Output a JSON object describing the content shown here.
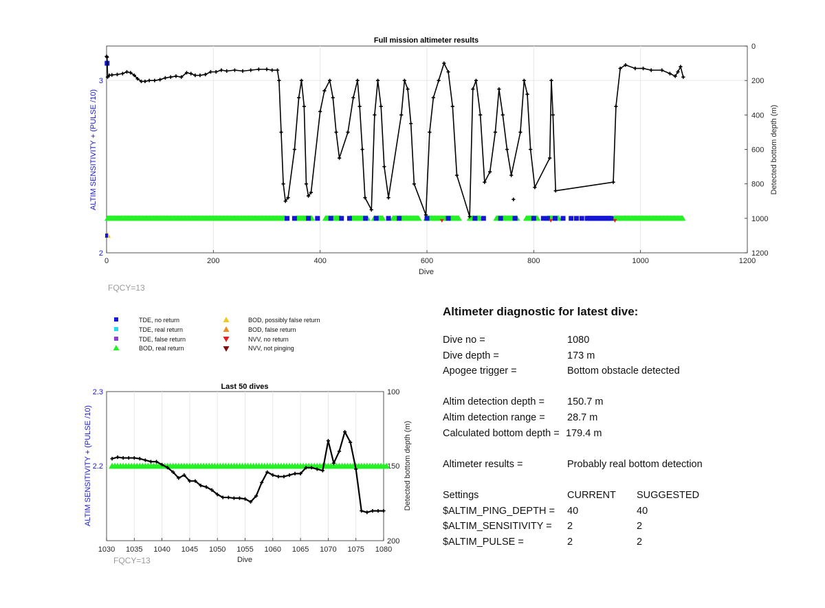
{
  "chart_data": [
    {
      "type": "line",
      "title": "Full mission altimeter results",
      "xlabel": "Dive",
      "ylabel_left": "ALTIM SENSITIVITY + (PULSE /10)",
      "ylabel_right": "Detected bottom depth (m)",
      "xlim": [
        0,
        1200
      ],
      "xticks": [
        "0",
        "200",
        "400",
        "600",
        "800",
        "1000",
        "1200"
      ],
      "ylim_left": [
        2,
        3.2
      ],
      "yticks_left": [
        "2",
        "3"
      ],
      "ylim_right_reversed": [
        0,
        1200
      ],
      "yticks_right": [
        "0",
        "200",
        "400",
        "600",
        "800",
        "1000",
        "1200"
      ],
      "grid": true,
      "series": [
        {
          "name": "Detected bottom depth",
          "x": [
            0,
            1,
            2,
            5,
            10,
            20,
            30,
            38,
            45,
            52,
            58,
            65,
            72,
            80,
            90,
            100,
            110,
            120,
            130,
            140,
            150,
            158,
            166,
            175,
            185,
            195,
            205,
            215,
            225,
            240,
            255,
            270,
            285,
            300,
            310,
            320,
            323,
            327,
            331,
            335,
            340,
            352,
            360,
            365,
            370,
            374,
            378,
            383,
            400,
            408,
            418,
            424,
            430,
            436,
            452,
            462,
            470,
            474,
            479,
            484,
            496,
            502,
            508,
            514,
            520,
            528,
            552,
            558,
            564,
            570,
            576,
            598,
            605,
            612,
            622,
            632,
            640,
            648,
            656,
            680,
            686,
            692,
            700,
            708,
            718,
            728,
            735,
            742,
            750,
            758,
            775,
            782,
            788,
            794,
            802,
            830,
            833,
            836,
            841,
            949,
            954,
            962,
            972,
            990,
            1005,
            1020,
            1040,
            1055,
            1065,
            1070,
            1075,
            1080
          ],
          "y": [
            60,
            65,
            180,
            170,
            168,
            165,
            160,
            150,
            155,
            170,
            190,
            205,
            205,
            200,
            200,
            195,
            185,
            180,
            175,
            180,
            155,
            160,
            170,
            170,
            165,
            150,
            150,
            140,
            145,
            140,
            145,
            140,
            135,
            135,
            140,
            140,
            200,
            500,
            800,
            900,
            880,
            600,
            300,
            200,
            350,
            800,
            870,
            850,
            380,
            260,
            200,
            300,
            500,
            650,
            500,
            300,
            200,
            350,
            600,
            880,
            950,
            400,
            200,
            350,
            700,
            880,
            400,
            200,
            250,
            450,
            800,
            980,
            500,
            300,
            200,
            100,
            150,
            350,
            750,
            990,
            250,
            200,
            400,
            790,
            730,
            500,
            250,
            400,
            600,
            750,
            500,
            200,
            280,
            600,
            820,
            650,
            200,
            400,
            840,
            790,
            350,
            130,
            110,
            130,
            130,
            140,
            140,
            160,
            175,
            150,
            120,
            180
          ]
        },
        {
          "name": "BOD, real return",
          "x_range": [
            0,
            1080
          ],
          "y": 2.2
        }
      ],
      "annotations": [
        "FQCY=13"
      ]
    },
    {
      "type": "line",
      "title": "Last 50 dives",
      "xlabel": "Dive",
      "ylabel_left": "ALTIM SENSITIVITY + (PULSE /10)",
      "ylabel_right": "Detected bottom depth (m)",
      "xlim": [
        1030,
        1080
      ],
      "xticks": [
        "1030",
        "1035",
        "1040",
        "1045",
        "1050",
        "1055",
        "1060",
        "1065",
        "1070",
        "1075",
        "1080"
      ],
      "ylim_left": [
        2.1,
        2.3
      ],
      "yticks_left": [
        "2.3",
        "2.2"
      ],
      "ylim_right_reversed": [
        100,
        200
      ],
      "yticks_right": [
        "100",
        "150",
        "200"
      ],
      "grid": true,
      "x": [
        1031,
        1032,
        1033,
        1034,
        1035,
        1036,
        1037,
        1038,
        1039,
        1040,
        1041,
        1042,
        1043,
        1044,
        1045,
        1046,
        1047,
        1048,
        1049,
        1050,
        1051,
        1052,
        1053,
        1054,
        1055,
        1056,
        1057,
        1058,
        1059,
        1060,
        1061,
        1062,
        1063,
        1064,
        1065,
        1066,
        1067,
        1068,
        1069,
        1070,
        1071,
        1072,
        1073,
        1074,
        1075,
        1076,
        1077,
        1078,
        1079,
        1080
      ],
      "series": [
        {
          "name": "Detected bottom depth",
          "values": [
            145,
            144,
            144.5,
            144.5,
            144.5,
            145,
            146,
            147,
            147,
            149,
            151,
            154,
            158,
            156,
            160,
            160,
            163,
            164,
            166,
            169,
            171,
            171,
            171.5,
            171.5,
            172,
            174,
            170,
            161,
            154,
            156,
            157,
            157,
            156,
            155,
            155,
            151,
            151,
            152,
            153,
            133,
            148,
            140,
            127,
            134,
            152,
            180,
            181,
            180,
            180,
            180
          ]
        },
        {
          "name": "BOD, real return",
          "values_constant": 2.2
        }
      ],
      "annotations": [
        "FQCY=13"
      ]
    }
  ],
  "legend": {
    "col1": [
      {
        "label": "TDE, no return",
        "marker": "square",
        "color": "#1515d6"
      },
      {
        "label": "TDE, real return",
        "marker": "square",
        "color": "#28d8f0"
      },
      {
        "label": "TDE, false return",
        "marker": "square",
        "color": "#8a3fd0"
      },
      {
        "label": "BOD, real return",
        "marker": "triangle-up",
        "color": "#26f026"
      }
    ],
    "col2": [
      {
        "label": "BOD, possibly false return",
        "marker": "triangle-up",
        "color": "#f2c81e"
      },
      {
        "label": "BOD, false return",
        "marker": "triangle-up",
        "color": "#f08c1e"
      },
      {
        "label": "NVV, no return",
        "marker": "triangle-down",
        "color": "#e01e1e"
      },
      {
        "label": "NVV, not pinging",
        "marker": "triangle-down",
        "color": "#7a0f0f"
      }
    ]
  },
  "fqcy_label": "FQCY=13",
  "diagnostic": {
    "heading": "Altimeter diagnostic for latest dive:",
    "dive_no_label": "Dive no =",
    "dive_no": "1080",
    "dive_depth_label": "Dive depth =",
    "dive_depth": "173 m",
    "apogee_label": "Apogee trigger =",
    "apogee": "Bottom obstacle detected",
    "det_depth_label": "Altim detection depth =",
    "det_depth": "150.7 m",
    "det_range_label": "Altim detection range =",
    "det_range": "28.7 m",
    "calc_depth_label": "Calculated bottom depth =",
    "calc_depth": "179.4 m",
    "results_label": "Altimeter results =",
    "results": "Probably real bottom detection",
    "settings_label": "Settings",
    "current_label": "CURRENT",
    "suggested_label": "SUGGESTED",
    "ping_depth_label": "$ALTIM_PING_DEPTH =",
    "ping_depth_cur": "40",
    "ping_depth_sug": "40",
    "sensitivity_label": "$ALTIM_SENSITIVITY =",
    "sensitivity_cur": "2",
    "sensitivity_sug": "2",
    "pulse_label": "$ALTIM_PULSE =",
    "pulse_cur": "2",
    "pulse_sug": "2"
  },
  "colors": {
    "depth_line": "#000000",
    "bod_real": "#26f026",
    "tde_no_return": "#1515d6",
    "left_axis": "#1a1acc",
    "grid": "#e6e6e6"
  }
}
